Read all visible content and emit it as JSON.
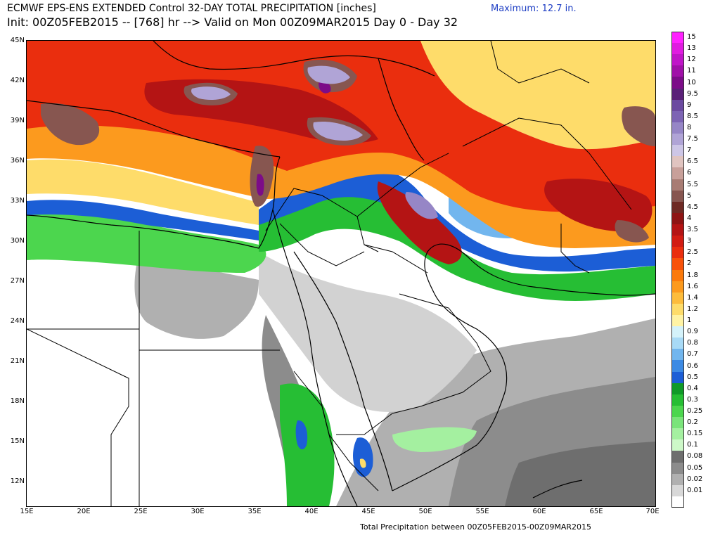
{
  "header": {
    "title_line1": "ECMWF EPS-ENS EXTENDED Control 32-DAY TOTAL PRECIPITATION [inches]",
    "title_line2": "Init: 00Z05FEB2015 -- [768] hr --> Valid on Mon 00Z09MAR2015   Day 0 - Day 32",
    "maximum_label": "Maximum:  12.7 in."
  },
  "footer": {
    "caption": "Total Precipitation between 00Z05FEB2015-00Z09MAR2015"
  },
  "axes": {
    "lat_labels": [
      "45N",
      "42N",
      "39N",
      "36N",
      "33N",
      "30N",
      "27N",
      "24N",
      "21N",
      "18N",
      "15N",
      "12N"
    ],
    "lon_labels": [
      "15E",
      "20E",
      "25E",
      "30E",
      "35E",
      "40E",
      "45E",
      "50E",
      "55E",
      "60E",
      "65E",
      "70E"
    ],
    "lat_range": [
      10,
      45
    ],
    "lon_range": [
      15,
      70
    ]
  },
  "legend": {
    "entries": [
      {
        "label": "15",
        "color": "#ff22ff"
      },
      {
        "label": "13",
        "color": "#e01ce0"
      },
      {
        "label": "12",
        "color": "#c015c8"
      },
      {
        "label": "11",
        "color": "#a010a8"
      },
      {
        "label": "10",
        "color": "#7c0c88"
      },
      {
        "label": "9.5",
        "color": "#5a2078"
      },
      {
        "label": "9",
        "color": "#6b4aa0"
      },
      {
        "label": "8.5",
        "color": "#7d64b4"
      },
      {
        "label": "8",
        "color": "#9686c6"
      },
      {
        "label": "7.5",
        "color": "#b0a4d6"
      },
      {
        "label": "7",
        "color": "#cdc6e6"
      },
      {
        "label": "6.5",
        "color": "#e0c4c0"
      },
      {
        "label": "6",
        "color": "#c8a09a"
      },
      {
        "label": "5.5",
        "color": "#a87c74"
      },
      {
        "label": "5",
        "color": "#875650"
      },
      {
        "label": "4.5",
        "color": "#6e2a24"
      },
      {
        "label": "4",
        "color": "#8e1414"
      },
      {
        "label": "3.5",
        "color": "#b41414"
      },
      {
        "label": "3",
        "color": "#d21c12"
      },
      {
        "label": "2.5",
        "color": "#ea2e0e"
      },
      {
        "label": "2",
        "color": "#f8520a"
      },
      {
        "label": "1.8",
        "color": "#fb7a0c"
      },
      {
        "label": "1.6",
        "color": "#fc9a1e"
      },
      {
        "label": "1.4",
        "color": "#fdbc3c"
      },
      {
        "label": "1.2",
        "color": "#fedc6a"
      },
      {
        "label": "1",
        "color": "#fff3a4"
      },
      {
        "label": "0.9",
        "color": "#d4f2fa"
      },
      {
        "label": "0.8",
        "color": "#a8daf6"
      },
      {
        "label": "0.7",
        "color": "#72b6ee"
      },
      {
        "label": "0.6",
        "color": "#3c8ae4"
      },
      {
        "label": "0.5",
        "color": "#1c5ed6"
      },
      {
        "label": "0.4",
        "color": "#109a28"
      },
      {
        "label": "0.3",
        "color": "#26be34"
      },
      {
        "label": "0.25",
        "color": "#4cd64e"
      },
      {
        "label": "0.2",
        "color": "#7ae47a"
      },
      {
        "label": "0.15",
        "color": "#a4f0a0"
      },
      {
        "label": "0.1",
        "color": "#cdf8c8"
      },
      {
        "label": "0.08",
        "color": "#6e6e6e"
      },
      {
        "label": "0.05",
        "color": "#8c8c8c"
      },
      {
        "label": "0.02",
        "color": "#b0b0b0"
      },
      {
        "label": "0.01",
        "color": "#d8d8d8"
      },
      {
        "label": "",
        "color": "#ffffff"
      }
    ]
  },
  "colors": {
    "land_dry": "#ffffff",
    "trace_gray": "#b0b0b0",
    "light_gray": "#d2d2d2",
    "mid_gray": "#8c8c8c",
    "dark_gray": "#6e6e6e",
    "light_green": "#a4f0a0",
    "green": "#26be34",
    "dark_green": "#109a28",
    "blue": "#1c5ed6",
    "light_blue": "#a8daf6",
    "yellow": "#fedc6a",
    "orange": "#fc9a1e",
    "red_orange": "#f8520a",
    "red": "#d21c12",
    "dark_red": "#8e1414",
    "brown": "#875650",
    "lavender": "#9686c6",
    "purple": "#7c0c88",
    "title_blue": "#1f3fc4"
  }
}
